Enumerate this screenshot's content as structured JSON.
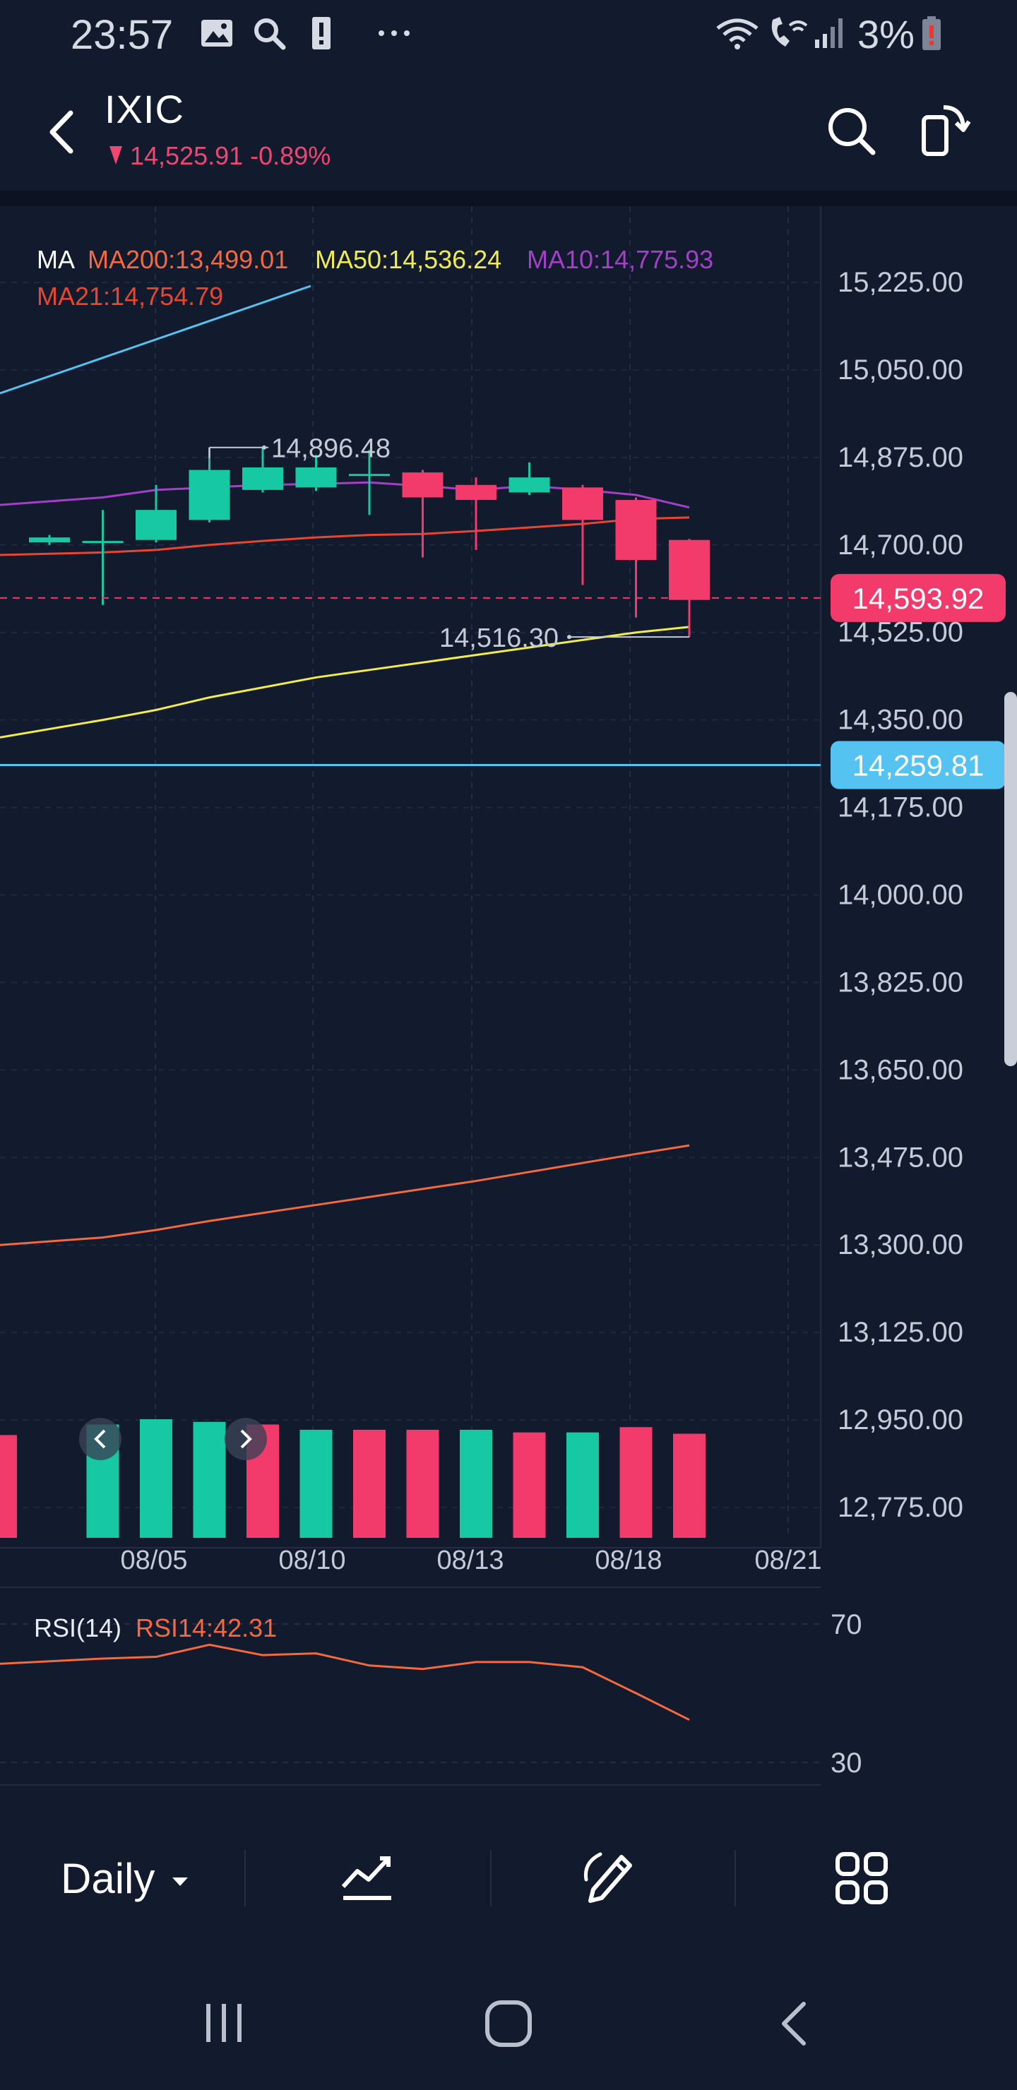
{
  "status_bar": {
    "time": "23:57",
    "battery": "3%",
    "icons": [
      "image-icon",
      "search-icon",
      "alert-icon",
      "more-icon",
      "wifi-icon",
      "wifi-call-icon",
      "signal-icon",
      "battery-icon"
    ]
  },
  "header": {
    "symbol": "IXIC",
    "price": "14,525.91",
    "change": "-0.89%",
    "back_icon": "back-arrow-icon",
    "search_icon": "search-icon",
    "rotate_icon": "rotate-screen-icon"
  },
  "colors": {
    "background": "#121a2e",
    "up": "#16c9a4",
    "down": "#f23a6b",
    "ma200": "#f4693d",
    "ma50": "#f2ec4b",
    "ma10": "#a43fc7",
    "ma21": "#e8462e",
    "trendline": "#55c3f2"
  },
  "chart_data": {
    "type": "candlestick",
    "y_ticks": [
      "15,225.00",
      "15,050.00",
      "14,875.00",
      "14,700.00",
      "14,525.00",
      "14,350.00",
      "14,175.00",
      "14,000.00",
      "13,825.00",
      "13,650.00",
      "13,475.00",
      "13,300.00",
      "13,125.00",
      "12,950.00",
      "12,775.00"
    ],
    "ylim": [
      12720,
      15300
    ],
    "x_ticks": [
      "08/05",
      "08/10",
      "08/13",
      "08/18",
      "08/21"
    ],
    "ma_legend": {
      "title": "MA",
      "ma200": "MA200:13,499.01",
      "ma50": "MA50:14,536.24",
      "ma10": "MA10:14,775.93",
      "ma21": "MA21:14,754.79"
    },
    "high_label": "14,896.48",
    "low_label": "14,516.30",
    "last_price_label": "14,593.92",
    "hline_price": 14593.92,
    "trendline_label": "14,259.81",
    "trendline_price": 14259.81,
    "candles": [
      {
        "open": 14705,
        "close": 14715,
        "high": 14720,
        "low": 14700
      },
      {
        "open": 14705,
        "close": 14708,
        "high": 14770,
        "low": 14580
      },
      {
        "open": 14710,
        "close": 14770,
        "high": 14820,
        "low": 14705
      },
      {
        "open": 14750,
        "close": 14850,
        "high": 14895,
        "low": 14745
      },
      {
        "open": 14810,
        "close": 14855,
        "high": 14896,
        "low": 14805
      },
      {
        "open": 14815,
        "close": 14855,
        "high": 14880,
        "low": 14808
      },
      {
        "open": 14840,
        "close": 14842,
        "high": 14890,
        "low": 14760
      },
      {
        "open": 14845,
        "close": 14795,
        "high": 14850,
        "low": 14675
      },
      {
        "open": 14820,
        "close": 14790,
        "high": 14835,
        "low": 14690
      },
      {
        "open": 14805,
        "close": 14835,
        "high": 14865,
        "low": 14800
      },
      {
        "open": 14815,
        "close": 14750,
        "high": 14820,
        "low": 14620
      },
      {
        "open": 14790,
        "close": 14670,
        "high": 14795,
        "low": 14555
      },
      {
        "open": 14710,
        "close": 14590,
        "high": 14712,
        "low": 14516
      }
    ],
    "ma10": [
      14780,
      14795,
      14810,
      14815,
      14820,
      14822,
      14825,
      14818,
      14810,
      14818,
      14810,
      14800,
      14775
    ],
    "ma21": [
      14680,
      14685,
      14690,
      14700,
      14708,
      14715,
      14720,
      14722,
      14728,
      14735,
      14742,
      14752,
      14755
    ],
    "ma50": [
      14315,
      14350,
      14370,
      14395,
      14415,
      14435,
      14450,
      14465,
      14480,
      14495,
      14510,
      14525,
      14536
    ],
    "ma200": [
      13300,
      13315,
      13330,
      13348,
      13364,
      13380,
      13396,
      13412,
      13428,
      13446,
      13464,
      13482,
      13499
    ],
    "volume_colors": [
      "down",
      "up",
      "up",
      "up",
      "down",
      "up",
      "down",
      "down",
      "up",
      "down",
      "up",
      "down",
      "down"
    ],
    "volume": [
      0.78,
      0.86,
      0.9,
      0.88,
      0.86,
      0.82,
      0.82,
      0.82,
      0.82,
      0.8,
      0.8,
      0.84,
      0.79
    ],
    "rsi": {
      "label": "RSI(14)",
      "value_label": "RSI14:42.31",
      "levels": [
        "70",
        "30"
      ],
      "ylim": [
        30,
        70
      ],
      "values": [
        58.5,
        60,
        60.5,
        64,
        61,
        61.5,
        58,
        57,
        59,
        59,
        57.5,
        50,
        42.31
      ]
    }
  },
  "toolbar": {
    "period": "Daily",
    "icons": [
      "indicator-icon",
      "draw-icon",
      "grid-icon"
    ]
  },
  "navbar": {
    "icons": [
      "recent-apps-icon",
      "home-icon",
      "back-icon"
    ]
  }
}
